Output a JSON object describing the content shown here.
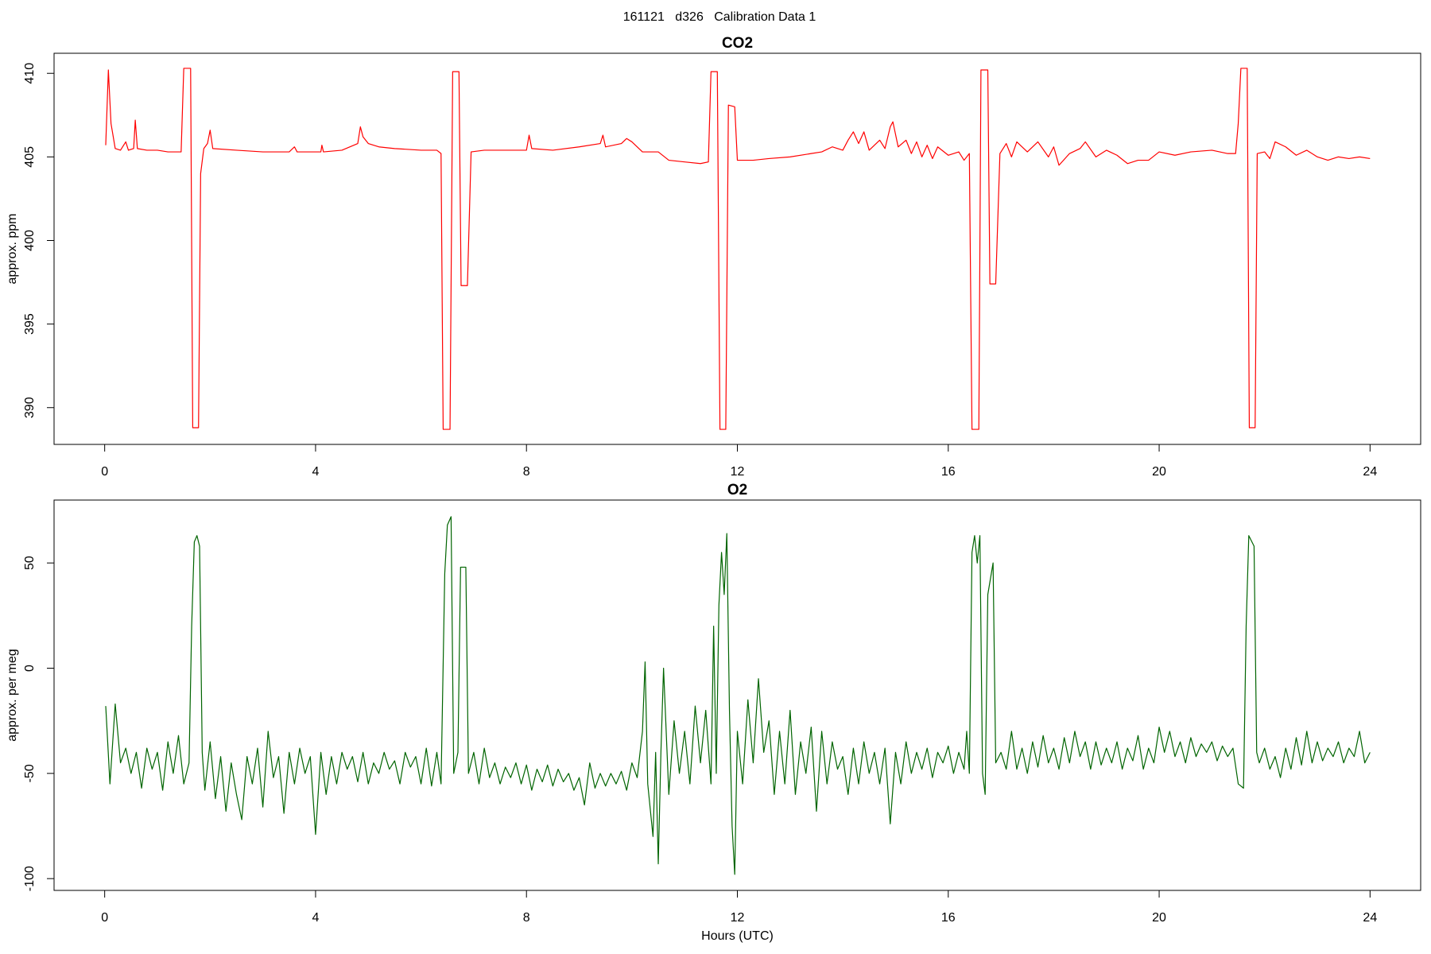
{
  "title": "161121   d326   Calibration Data 1",
  "chart_data": [
    {
      "type": "line",
      "title": "CO2",
      "ylabel": "approx. ppm",
      "color": "#ff0000",
      "xlim": [
        -0.96,
        24.96
      ],
      "xticks": [
        0,
        4,
        8,
        12,
        16,
        20,
        24
      ],
      "ylim": [
        387.8,
        411.2
      ],
      "yticks": [
        390,
        395,
        400,
        405,
        410
      ],
      "x": [
        0.02,
        0.07,
        0.12,
        0.2,
        0.3,
        0.4,
        0.45,
        0.55,
        0.58,
        0.62,
        0.8,
        1.0,
        1.2,
        1.45,
        1.5,
        1.63,
        1.67,
        1.78,
        1.82,
        1.88,
        1.95,
        2.0,
        2.05,
        2.5,
        3,
        3.5,
        3.6,
        3.65,
        4.1,
        4.12,
        4.15,
        4.5,
        4.8,
        4.85,
        4.9,
        5.0,
        5.2,
        5.5,
        6.0,
        6.3,
        6.38,
        6.42,
        6.55,
        6.6,
        6.72,
        6.76,
        6.88,
        6.95,
        7.2,
        7.6,
        8.0,
        8.05,
        8.1,
        8.5,
        9.0,
        9.4,
        9.45,
        9.5,
        9.8,
        9.9,
        10.0,
        10.2,
        10.5,
        10.7,
        11.0,
        11.3,
        11.45,
        11.5,
        11.62,
        11.67,
        11.78,
        11.83,
        11.95,
        12.0,
        12.3,
        12.6,
        13.0,
        13.4,
        13.6,
        13.8,
        14.0,
        14.1,
        14.2,
        14.3,
        14.4,
        14.5,
        14.7,
        14.8,
        14.9,
        14.95,
        15.05,
        15.2,
        15.3,
        15.4,
        15.5,
        15.6,
        15.7,
        15.8,
        16.0,
        16.2,
        16.3,
        16.4,
        16.45,
        16.58,
        16.62,
        16.75,
        16.79,
        16.9,
        16.98,
        17.1,
        17.2,
        17.3,
        17.5,
        17.7,
        17.9,
        18.0,
        18.1,
        18.3,
        18.5,
        18.6,
        18.8,
        19.0,
        19.2,
        19.4,
        19.6,
        19.8,
        20.0,
        20.3,
        20.6,
        21.0,
        21.3,
        21.45,
        21.5,
        21.55,
        21.67,
        21.71,
        21.82,
        21.86,
        22.0,
        22.1,
        22.2,
        22.4,
        22.6,
        22.8,
        23.0,
        23.2,
        23.4,
        23.6,
        23.8,
        24.0
      ],
      "values": [
        405.7,
        410.2,
        407,
        405.5,
        405.4,
        405.9,
        405.4,
        405.5,
        407.2,
        405.5,
        405.4,
        405.4,
        405.3,
        405.3,
        410.3,
        410.3,
        388.8,
        388.8,
        404,
        405.5,
        405.8,
        406.6,
        405.5,
        405.4,
        405.3,
        405.3,
        405.6,
        405.3,
        405.3,
        405.7,
        405.3,
        405.4,
        405.8,
        406.8,
        406.2,
        405.8,
        405.6,
        405.5,
        405.4,
        405.4,
        405.2,
        388.7,
        388.7,
        410.1,
        410.1,
        397.3,
        397.3,
        405.3,
        405.4,
        405.4,
        405.4,
        406.3,
        405.5,
        405.4,
        405.6,
        405.8,
        406.3,
        405.6,
        405.8,
        406.1,
        405.9,
        405.3,
        405.3,
        404.8,
        404.7,
        404.6,
        404.7,
        410.1,
        410.1,
        388.7,
        388.7,
        408.1,
        408.0,
        404.8,
        404.8,
        404.9,
        405.0,
        405.2,
        405.3,
        405.6,
        405.4,
        406.0,
        406.5,
        405.8,
        406.5,
        405.4,
        406.0,
        405.5,
        406.8,
        407.1,
        405.6,
        406.0,
        405.2,
        405.9,
        405.0,
        405.7,
        404.9,
        405.6,
        405.1,
        405.3,
        404.8,
        405.2,
        388.7,
        388.7,
        410.2,
        410.2,
        397.4,
        397.4,
        405.2,
        405.8,
        405.0,
        405.9,
        405.3,
        405.9,
        405.0,
        405.6,
        404.5,
        405.2,
        405.5,
        405.9,
        405.0,
        405.4,
        405.1,
        404.6,
        404.8,
        404.8,
        405.3,
        405.1,
        405.3,
        405.4,
        405.2,
        405.2,
        407,
        410.3,
        410.3,
        388.8,
        388.8,
        405.2,
        405.3,
        404.9,
        405.9,
        405.6,
        405.1,
        405.4,
        405.0,
        404.8,
        405.0,
        404.9,
        405.0,
        404.9
      ]
    },
    {
      "type": "line",
      "title": "O2",
      "ylabel": "approx. per meg",
      "xlabel": "Hours (UTC)",
      "color": "#006400",
      "xlim": [
        -0.96,
        24.96
      ],
      "xticks": [
        0,
        4,
        8,
        12,
        16,
        20,
        24
      ],
      "ylim": [
        -105.6,
        79.9
      ],
      "yticks": [
        -100,
        -50,
        0,
        50
      ],
      "x": [
        0.02,
        0.1,
        0.2,
        0.3,
        0.4,
        0.5,
        0.6,
        0.7,
        0.8,
        0.9,
        1.0,
        1.1,
        1.2,
        1.3,
        1.4,
        1.5,
        1.6,
        1.65,
        1.7,
        1.75,
        1.8,
        1.85,
        1.9,
        2.0,
        2.1,
        2.2,
        2.3,
        2.4,
        2.5,
        2.6,
        2.7,
        2.8,
        2.9,
        3.0,
        3.1,
        3.2,
        3.3,
        3.4,
        3.5,
        3.6,
        3.7,
        3.8,
        3.9,
        4.0,
        4.1,
        4.2,
        4.3,
        4.4,
        4.5,
        4.6,
        4.7,
        4.8,
        4.9,
        5.0,
        5.1,
        5.2,
        5.3,
        5.4,
        5.5,
        5.6,
        5.7,
        5.8,
        5.9,
        6.0,
        6.1,
        6.2,
        6.3,
        6.38,
        6.45,
        6.5,
        6.57,
        6.62,
        6.7,
        6.75,
        6.85,
        6.9,
        7.0,
        7.1,
        7.2,
        7.3,
        7.4,
        7.5,
        7.6,
        7.7,
        7.8,
        7.9,
        8.0,
        8.1,
        8.2,
        8.3,
        8.4,
        8.5,
        8.6,
        8.7,
        8.8,
        8.9,
        9.0,
        9.1,
        9.2,
        9.3,
        9.4,
        9.5,
        9.6,
        9.7,
        9.8,
        9.9,
        10.0,
        10.1,
        10.2,
        10.25,
        10.3,
        10.4,
        10.45,
        10.5,
        10.55,
        10.6,
        10.7,
        10.8,
        10.9,
        11.0,
        11.1,
        11.2,
        11.3,
        11.4,
        11.5,
        11.55,
        11.6,
        11.65,
        11.7,
        11.75,
        11.8,
        11.85,
        11.9,
        11.95,
        12.0,
        12.1,
        12.2,
        12.3,
        12.4,
        12.5,
        12.6,
        12.7,
        12.8,
        12.9,
        13.0,
        13.1,
        13.2,
        13.3,
        13.4,
        13.5,
        13.6,
        13.7,
        13.8,
        13.9,
        14.0,
        14.1,
        14.2,
        14.3,
        14.4,
        14.5,
        14.6,
        14.7,
        14.8,
        14.9,
        15.0,
        15.1,
        15.2,
        15.3,
        15.4,
        15.5,
        15.6,
        15.7,
        15.8,
        15.9,
        16.0,
        16.1,
        16.2,
        16.3,
        16.35,
        16.4,
        16.45,
        16.5,
        16.55,
        16.6,
        16.65,
        16.7,
        16.75,
        16.85,
        16.9,
        17.0,
        17.1,
        17.2,
        17.3,
        17.4,
        17.5,
        17.6,
        17.7,
        17.8,
        17.9,
        18.0,
        18.1,
        18.2,
        18.3,
        18.4,
        18.5,
        18.6,
        18.7,
        18.8,
        18.9,
        19.0,
        19.1,
        19.2,
        19.3,
        19.4,
        19.5,
        19.6,
        19.7,
        19.8,
        19.9,
        20.0,
        20.1,
        20.2,
        20.3,
        20.4,
        20.5,
        20.6,
        20.7,
        20.8,
        20.9,
        21.0,
        21.1,
        21.2,
        21.3,
        21.4,
        21.5,
        21.6,
        21.65,
        21.7,
        21.8,
        21.85,
        21.9,
        22.0,
        22.1,
        22.2,
        22.3,
        22.4,
        22.5,
        22.6,
        22.7,
        22.8,
        22.9,
        23.0,
        23.1,
        23.2,
        23.3,
        23.4,
        23.5,
        23.6,
        23.7,
        23.8,
        23.9,
        24.0
      ],
      "values": [
        -18,
        -55,
        -17,
        -45,
        -38,
        -50,
        -40,
        -57,
        -38,
        -48,
        -40,
        -58,
        -35,
        -50,
        -32,
        -55,
        -45,
        20,
        60,
        63,
        58,
        -40,
        -58,
        -35,
        -62,
        -42,
        -68,
        -45,
        -60,
        -72,
        -42,
        -55,
        -38,
        -66,
        -30,
        -52,
        -42,
        -69,
        -40,
        -55,
        -38,
        -50,
        -42,
        -79,
        -40,
        -60,
        -42,
        -55,
        -40,
        -48,
        -42,
        -54,
        -40,
        -55,
        -45,
        -50,
        -40,
        -48,
        -44,
        -55,
        -40,
        -47,
        -42,
        -55,
        -38,
        -56,
        -40,
        -55,
        45,
        68,
        72,
        -50,
        -40,
        48,
        48,
        -50,
        -40,
        -55,
        -38,
        -52,
        -45,
        -55,
        -47,
        -52,
        -45,
        -55,
        -46,
        -58,
        -48,
        -54,
        -46,
        -56,
        -48,
        -54,
        -50,
        -58,
        -52,
        -65,
        -45,
        -57,
        -50,
        -56,
        -50,
        -55,
        -49,
        -58,
        -45,
        -52,
        -30,
        3,
        -55,
        -80,
        -40,
        -93,
        -40,
        0,
        -60,
        -25,
        -50,
        -30,
        -55,
        -18,
        -45,
        -20,
        -55,
        20,
        -50,
        30,
        55,
        35,
        64,
        -20,
        -75,
        -98,
        -30,
        -55,
        -15,
        -45,
        -5,
        -40,
        -25,
        -60,
        -30,
        -55,
        -20,
        -60,
        -35,
        -50,
        -28,
        -68,
        -30,
        -55,
        -35,
        -48,
        -42,
        -60,
        -38,
        -55,
        -35,
        -50,
        -40,
        -55,
        -38,
        -74,
        -40,
        -55,
        -35,
        -50,
        -40,
        -48,
        -38,
        -52,
        -40,
        -45,
        -37,
        -50,
        -40,
        -48,
        -30,
        -50,
        55,
        63,
        50,
        63,
        -50,
        -60,
        35,
        50,
        -45,
        -40,
        -48,
        -30,
        -48,
        -38,
        -50,
        -35,
        -47,
        -32,
        -45,
        -38,
        -48,
        -33,
        -45,
        -30,
        -42,
        -35,
        -48,
        -35,
        -46,
        -38,
        -45,
        -35,
        -48,
        -38,
        -44,
        -32,
        -48,
        -38,
        -45,
        -28,
        -40,
        -30,
        -42,
        -35,
        -45,
        -33,
        -42,
        -36,
        -40,
        -35,
        -44,
        -37,
        -42,
        -38,
        -55,
        -57,
        20,
        63,
        58,
        -40,
        -45,
        -38,
        -48,
        -42,
        -52,
        -38,
        -48,
        -33,
        -46,
        -30,
        -45,
        -35,
        -44,
        -38,
        -42,
        -35,
        -45,
        -38,
        -42,
        -30,
        -45,
        -40
      ]
    }
  ]
}
